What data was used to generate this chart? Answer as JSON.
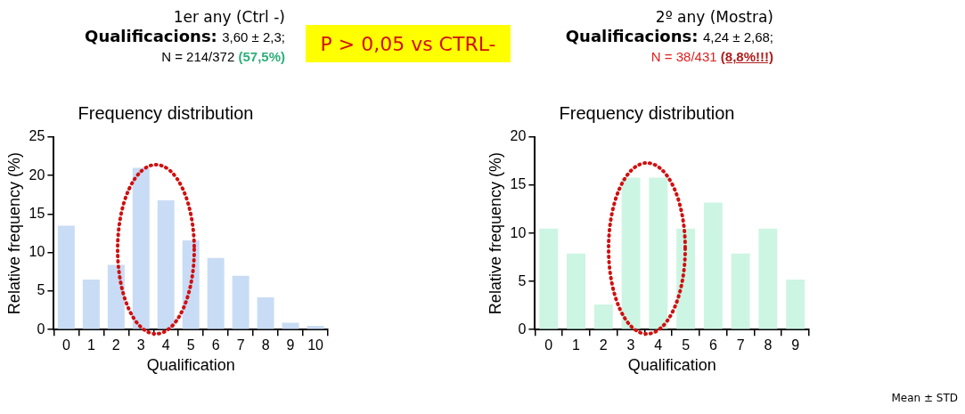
{
  "chart_data": [
    {
      "type": "bar",
      "title": "Frequency distribution",
      "xlabel": "Qualification",
      "ylabel": "Relative frequency (%)",
      "categories": [
        "0",
        "1",
        "2",
        "3",
        "4",
        "5",
        "6",
        "7",
        "8",
        "9",
        "10"
      ],
      "series": [
        {
          "color": "#c9dcf5",
          "values": [
            13.5,
            6.5,
            8.4,
            21,
            16.8,
            11.6,
            9.3,
            7,
            4.2,
            0.9,
            0.5
          ]
        }
      ],
      "ylim": [
        0,
        25
      ],
      "yticks": [
        0,
        5,
        10,
        15,
        20,
        25
      ],
      "grid": false,
      "legend": false,
      "annotations": [
        "1er any (Ctrl -)",
        "Qualificacions:",
        "3,60 ± 2,3;",
        "N = 214/372",
        "(57,5%)",
        "P > 0,05 vs CTRL-"
      ]
    },
    {
      "type": "bar",
      "title": "Frequency distribution",
      "xlabel": "Qualification",
      "ylabel": "Relative frequency (%)",
      "categories": [
        "0",
        "1",
        "2",
        "3",
        "4",
        "5",
        "6",
        "7",
        "8",
        "9"
      ],
      "series": [
        {
          "color": "#cdf5e3",
          "values": [
            10.5,
            7.9,
            2.6,
            15.8,
            15.8,
            10.5,
            13.2,
            7.9,
            10.5,
            5.2
          ]
        }
      ],
      "ylim": [
        0,
        20
      ],
      "yticks": [
        0,
        5,
        10,
        15,
        20
      ],
      "grid": false,
      "legend": false,
      "annotations": [
        "2º any (Mostra)",
        "Qualificacions:",
        "4,24 ± 2,68;",
        "N = 38/431",
        "(8,8%!!!)",
        "Mean ± STD"
      ]
    }
  ]
}
